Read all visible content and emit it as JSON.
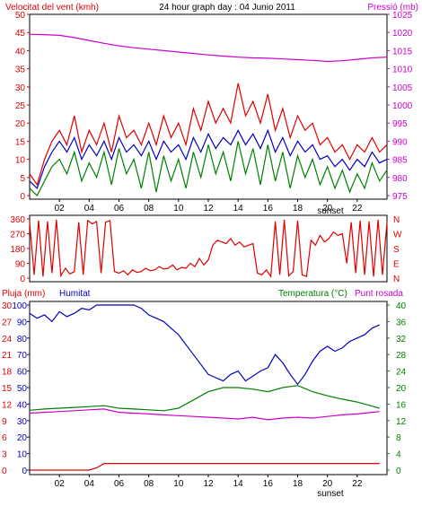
{
  "header": {
    "left_title": "Velocitat del vent (kmh)",
    "center_title": "24 hour graph day : 04 Junio 2011",
    "right_title": "Pressió (mb)"
  },
  "colors": {
    "red": "#e00000",
    "blue": "#0000c0",
    "green": "#008000",
    "magenta": "#cc00cc"
  },
  "chart_data": [
    {
      "type": "line",
      "x_ticks": [
        "02",
        "04",
        "06",
        "08",
        "10",
        "12",
        "14",
        "16",
        "18",
        "20",
        "22"
      ],
      "sunset_label": "sunset",
      "sunset_x": 20.2,
      "left_axis": {
        "title": "Velocitat del vent (kmh)",
        "ticks": [
          0,
          5,
          10,
          15,
          20,
          25,
          30,
          35,
          40,
          45,
          50
        ],
        "ylim": [
          0,
          50
        ]
      },
      "right_axis": {
        "title": "Pressió (mb)",
        "ticks": [
          975,
          980,
          985,
          990,
          995,
          1000,
          1005,
          1010,
          1015,
          1020,
          1025
        ],
        "ylim": [
          975,
          1025
        ]
      },
      "series": [
        {
          "axis": "right",
          "color": "magenta",
          "x": [
            0,
            1,
            2,
            3,
            4,
            5,
            6,
            7,
            8,
            9,
            10,
            11,
            12,
            13,
            14,
            15,
            16,
            17,
            18,
            19,
            20,
            21,
            22,
            23,
            24
          ],
          "values": [
            1019.5,
            1019.4,
            1019.2,
            1018.6,
            1017.8,
            1017.0,
            1016.3,
            1015.8,
            1015.4,
            1015.0,
            1014.6,
            1014.2,
            1013.8,
            1013.5,
            1013.2,
            1013.0,
            1012.9,
            1012.7,
            1012.5,
            1012.3,
            1012.0,
            1012.2,
            1012.6,
            1013.0,
            1013.2
          ]
        },
        {
          "color": "red",
          "x": [
            0,
            0.5,
            1,
            1.5,
            2,
            2.5,
            3,
            3.5,
            4,
            4.5,
            5,
            5.5,
            6,
            6.5,
            7,
            7.5,
            8,
            8.5,
            9,
            9.5,
            10,
            10.5,
            11,
            11.5,
            12,
            12.5,
            13,
            13.5,
            14,
            14.5,
            15,
            15.5,
            16,
            16.5,
            17,
            17.5,
            18,
            18.5,
            19,
            19.5,
            20,
            20.5,
            21,
            21.5,
            22,
            22.5,
            23,
            23.5,
            24
          ],
          "values": [
            6,
            3,
            10,
            15,
            18,
            14,
            22,
            12,
            18,
            14,
            20,
            12,
            22,
            16,
            18,
            14,
            20,
            14,
            22,
            16,
            20,
            14,
            24,
            18,
            26,
            20,
            24,
            20,
            31,
            22,
            26,
            20,
            28,
            18,
            24,
            16,
            22,
            18,
            20,
            14,
            16,
            12,
            14,
            10,
            14,
            12,
            16,
            12,
            14
          ]
        },
        {
          "color": "blue",
          "x": [
            0,
            0.5,
            1,
            1.5,
            2,
            2.5,
            3,
            3.5,
            4,
            4.5,
            5,
            5.5,
            6,
            6.5,
            7,
            7.5,
            8,
            8.5,
            9,
            9.5,
            10,
            10.5,
            11,
            11.5,
            12,
            12.5,
            13,
            13.5,
            14,
            14.5,
            15,
            15.5,
            16,
            16.5,
            17,
            17.5,
            18,
            18.5,
            19,
            19.5,
            20,
            20.5,
            21,
            21.5,
            22,
            22.5,
            23,
            23.5,
            24
          ],
          "values": [
            4,
            2,
            8,
            12,
            15,
            12,
            16,
            10,
            14,
            11,
            15,
            10,
            16,
            12,
            14,
            11,
            15,
            10,
            15,
            12,
            14,
            10,
            16,
            12,
            17,
            13,
            16,
            14,
            18,
            14,
            17,
            13,
            18,
            12,
            16,
            11,
            15,
            12,
            14,
            10,
            11,
            8,
            10,
            7,
            10,
            8,
            12,
            9,
            10
          ]
        },
        {
          "color": "green",
          "x": [
            0,
            0.5,
            1,
            1.5,
            2,
            2.5,
            3,
            3.5,
            4,
            4.5,
            5,
            5.5,
            6,
            6.5,
            7,
            7.5,
            8,
            8.5,
            9,
            9.5,
            10,
            10.5,
            11,
            11.5,
            12,
            12.5,
            13,
            13.5,
            14,
            14.5,
            15,
            15.5,
            16,
            16.5,
            17,
            17.5,
            18,
            18.5,
            19,
            19.5,
            20,
            20.5,
            21,
            21.5,
            22,
            22.5,
            23,
            23.5,
            24
          ],
          "values": [
            2,
            0,
            4,
            8,
            10,
            6,
            12,
            4,
            9,
            5,
            12,
            3,
            13,
            6,
            10,
            2,
            12,
            1,
            11,
            4,
            10,
            2,
            12,
            5,
            14,
            6,
            12,
            4,
            15,
            6,
            13,
            3,
            14,
            4,
            12,
            2,
            11,
            5,
            10,
            3,
            8,
            2,
            7,
            1,
            6,
            2,
            9,
            4,
            7
          ]
        }
      ]
    },
    {
      "type": "line",
      "x_ticks": [
        "02",
        "04",
        "06",
        "08",
        "10",
        "12",
        "14",
        "16",
        "18",
        "20",
        "22"
      ],
      "left_axis": {
        "ticks": [
          0,
          90,
          180,
          270,
          360
        ],
        "ylim": [
          0,
          360
        ]
      },
      "right_labels": [
        "N",
        "W",
        "S",
        "E",
        "N"
      ],
      "series": [
        {
          "color": "red",
          "x": [
            0,
            0.3,
            0.6,
            0.9,
            1.2,
            1.5,
            1.8,
            2.1,
            2.4,
            2.7,
            3.0,
            3.3,
            3.6,
            3.9,
            4.2,
            4.5,
            4.8,
            5.1,
            5.4,
            5.7,
            6.0,
            6.3,
            6.6,
            6.9,
            7.2,
            7.5,
            7.8,
            8.1,
            8.4,
            8.7,
            9.0,
            9.3,
            9.6,
            9.9,
            10.2,
            10.5,
            10.8,
            11.1,
            11.4,
            11.7,
            12.0,
            12.3,
            12.6,
            12.9,
            13.2,
            13.5,
            13.8,
            14.1,
            14.4,
            14.7,
            15.0,
            15.3,
            15.6,
            15.9,
            16.2,
            16.5,
            16.8,
            17.1,
            17.4,
            17.7,
            18.0,
            18.3,
            18.6,
            18.9,
            19.2,
            19.5,
            19.8,
            20.1,
            20.4,
            20.7,
            21.0,
            21.3,
            21.6,
            21.9,
            22.2,
            22.5,
            22.8,
            23.1,
            23.4,
            23.7,
            24
          ],
          "values": [
            340,
            20,
            350,
            10,
            345,
            30,
            355,
            15,
            60,
            25,
            40,
            340,
            20,
            350,
            330,
            345,
            30,
            340,
            350,
            40,
            30,
            45,
            20,
            50,
            35,
            40,
            60,
            45,
            50,
            70,
            55,
            60,
            80,
            50,
            65,
            60,
            90,
            70,
            120,
            80,
            110,
            200,
            230,
            220,
            210,
            240,
            200,
            220,
            190,
            200,
            210,
            30,
            20,
            50,
            10,
            345,
            20,
            355,
            15,
            40,
            350,
            20,
            10,
            230,
            200,
            260,
            220,
            240,
            280,
            260,
            270,
            90,
            340,
            30,
            350,
            20,
            345,
            10,
            355,
            20,
            340
          ]
        }
      ]
    },
    {
      "type": "line",
      "x_ticks": [
        "02",
        "04",
        "06",
        "08",
        "10",
        "12",
        "14",
        "16",
        "18",
        "20",
        "22"
      ],
      "sunset_label": "sunset",
      "sunset_x": 20.2,
      "legend": [
        "Pluja (mm)",
        "Humitat",
        "Temperatura (°C)",
        "Punt rosada"
      ],
      "left_axis_pluja": {
        "title": "Pluja (mm)",
        "ticks": [
          0,
          3,
          6,
          9,
          12,
          15,
          18,
          21,
          24,
          27,
          30
        ],
        "ylim": [
          0,
          30
        ]
      },
      "left_axis_humitat": {
        "title": "Humitat",
        "ticks": [
          0,
          10,
          20,
          30,
          40,
          50,
          60,
          70,
          80,
          90,
          100
        ],
        "ylim": [
          0,
          100
        ]
      },
      "right_axis": {
        "title": "Temperatura (°C)",
        "ticks": [
          0,
          4,
          8,
          12,
          16,
          20,
          24,
          28,
          32,
          36,
          40
        ],
        "ylim": [
          0,
          40
        ]
      },
      "series": [
        {
          "name": "Humitat",
          "axis": "humitat",
          "color": "blue",
          "x": [
            0,
            0.5,
            1,
            1.5,
            2,
            2.5,
            3,
            3.5,
            4,
            4.5,
            5,
            5.5,
            6,
            6.5,
            7,
            7.5,
            8,
            8.5,
            9,
            9.5,
            10,
            10.5,
            11,
            11.5,
            12,
            12.5,
            13,
            13.5,
            14,
            14.5,
            15,
            15.5,
            16,
            16.5,
            17,
            17.5,
            18,
            18.5,
            19,
            19.5,
            20,
            20.5,
            21,
            21.5,
            22,
            22.5,
            23,
            23.5
          ],
          "values": [
            95,
            92,
            94,
            90,
            96,
            93,
            95,
            98,
            97,
            100,
            100,
            100,
            100,
            100,
            100,
            98,
            94,
            92,
            90,
            86,
            82,
            76,
            70,
            64,
            58,
            56,
            54,
            58,
            60,
            54,
            57,
            60,
            62,
            70,
            65,
            58,
            52,
            58,
            66,
            72,
            75,
            72,
            74,
            78,
            80,
            82,
            86,
            88
          ]
        },
        {
          "name": "Temperatura (°C)",
          "axis": "right",
          "color": "green",
          "x": [
            0,
            1,
            2,
            3,
            4,
            5,
            6,
            7,
            8,
            9,
            10,
            11,
            12,
            13,
            14,
            15,
            16,
            17,
            18,
            19,
            20,
            21,
            22,
            23,
            23.5
          ],
          "values": [
            14.5,
            14.8,
            15.0,
            15.2,
            15.4,
            15.6,
            15.0,
            14.8,
            14.6,
            14.4,
            15.0,
            17.0,
            19.0,
            20.0,
            20.0,
            19.6,
            19.0,
            20.0,
            20.5,
            19.0,
            18.0,
            17.2,
            16.5,
            15.5,
            15.0
          ]
        },
        {
          "name": "Punt rosada",
          "axis": "right",
          "color": "magenta",
          "x": [
            0,
            1,
            2,
            3,
            4,
            5,
            6,
            7,
            8,
            9,
            10,
            11,
            12,
            13,
            14,
            15,
            16,
            17,
            18,
            19,
            20,
            21,
            22,
            23,
            23.5
          ],
          "values": [
            13.8,
            14.0,
            14.2,
            14.4,
            14.6,
            14.8,
            14.0,
            13.8,
            13.6,
            13.4,
            13.2,
            13.0,
            12.8,
            12.6,
            12.4,
            12.8,
            12.2,
            12.6,
            12.8,
            12.6,
            13.0,
            13.4,
            13.6,
            14.0,
            14.2
          ]
        },
        {
          "name": "Pluja (mm)",
          "axis": "pluja",
          "color": "red",
          "x": [
            0,
            2,
            4,
            4.5,
            5,
            6,
            8,
            10,
            12,
            14,
            16,
            18,
            20,
            22,
            23.5
          ],
          "values": [
            0,
            0,
            0,
            0.4,
            1.2,
            1.2,
            1.2,
            1.2,
            1.2,
            1.2,
            1.2,
            1.2,
            1.2,
            1.2,
            1.2
          ]
        }
      ]
    }
  ]
}
